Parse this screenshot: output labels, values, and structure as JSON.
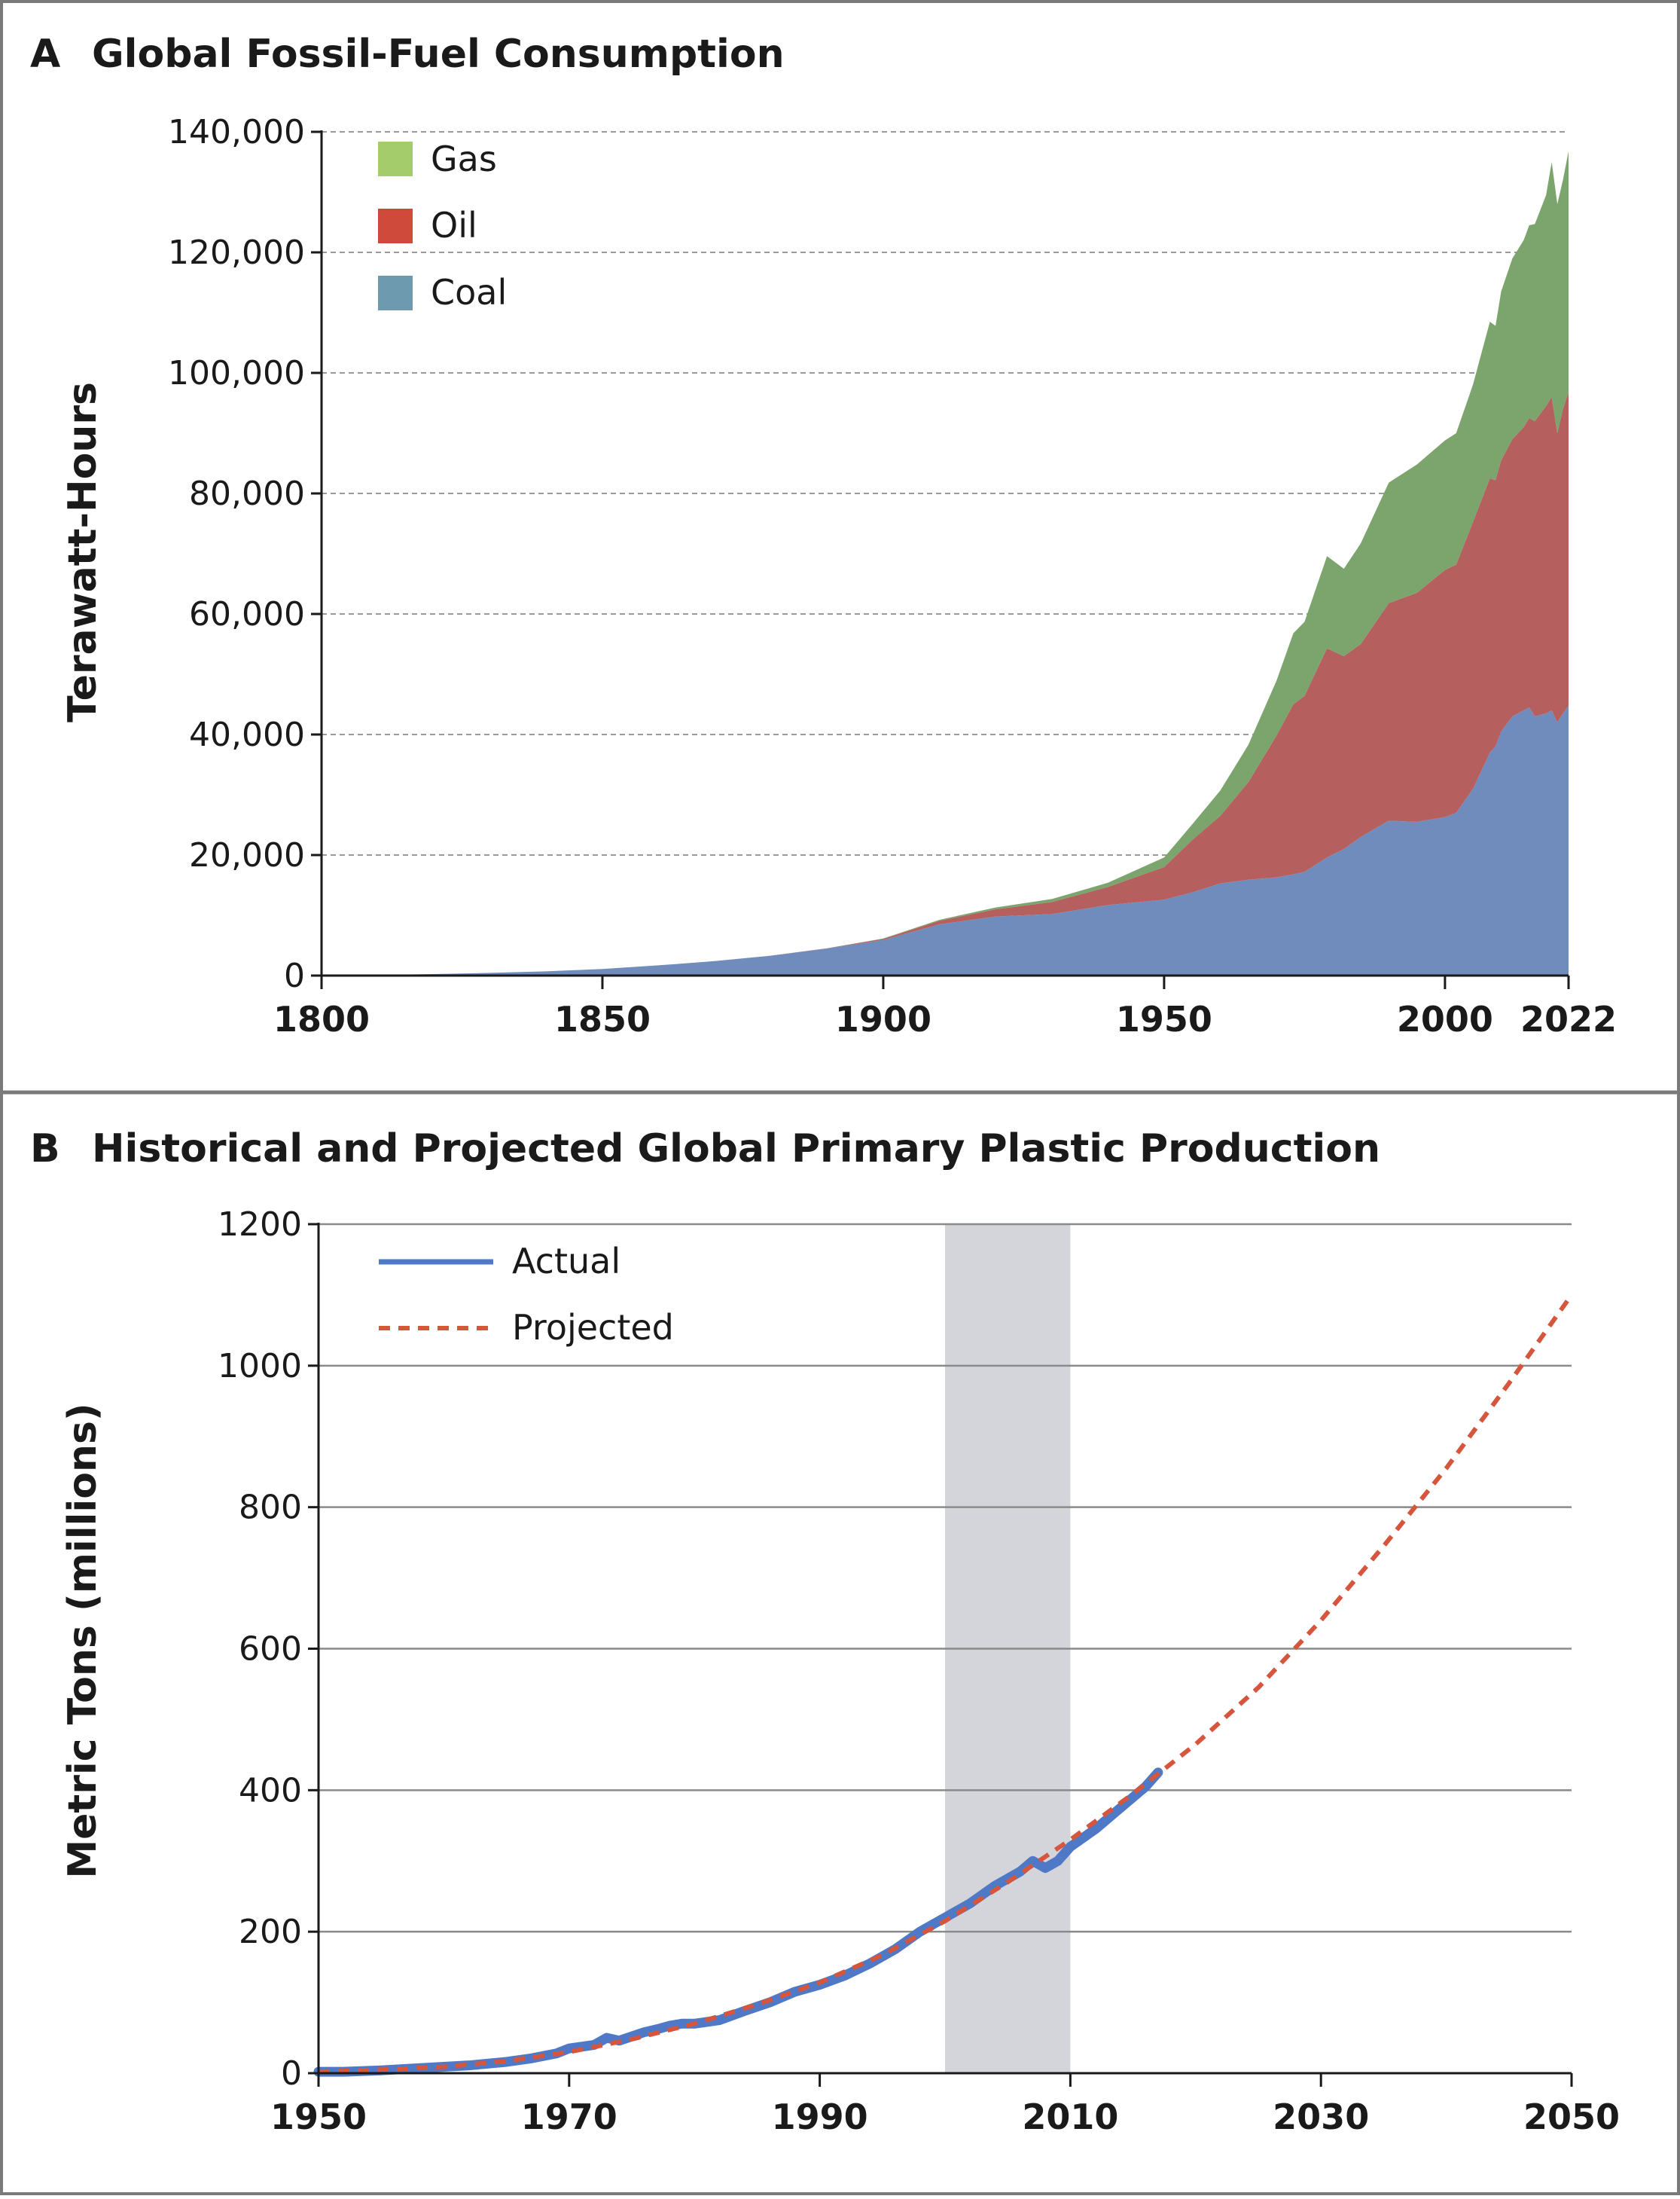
{
  "chart_data": [
    {
      "panel": "A",
      "type": "area",
      "stacked": true,
      "title": "Global Fossil-Fuel Consumption",
      "xlabel": "",
      "ylabel": "Terawatt-Hours",
      "xlim": [
        1800,
        2022
      ],
      "ylim": [
        0,
        140000
      ],
      "xticks": [
        1800,
        1850,
        1900,
        1950,
        2000,
        2022
      ],
      "yticks": [
        0,
        20000,
        40000,
        60000,
        80000,
        100000,
        120000,
        140000
      ],
      "ytick_labels": [
        "0",
        "20,000",
        "40,000",
        "60,000",
        "80,000",
        "100,000",
        "120,000",
        "140,000"
      ],
      "grid": "horizontal dashed",
      "legend_position": "top-left",
      "legend_order": [
        "Gas",
        "Oil",
        "Coal"
      ],
      "x": [
        1800,
        1810,
        1820,
        1830,
        1840,
        1850,
        1860,
        1870,
        1880,
        1890,
        1900,
        1910,
        1920,
        1930,
        1940,
        1950,
        1955,
        1960,
        1965,
        1970,
        1973,
        1975,
        1979,
        1982,
        1985,
        1990,
        1995,
        2000,
        2002,
        2005,
        2008,
        2009,
        2010,
        2012,
        2014,
        2015,
        2016,
        2018,
        2019,
        2020,
        2021,
        2022
      ],
      "series": [
        {
          "name": "Coal",
          "color": "#6f8cbc",
          "legend_color": "#6e9ab0",
          "values": [
            100,
            120,
            250,
            450,
            700,
            1100,
            1700,
            2400,
            3300,
            4500,
            5900,
            8500,
            9800,
            10200,
            11700,
            12600,
            13800,
            15300,
            15900,
            16300,
            16800,
            17200,
            19600,
            21000,
            23000,
            25700,
            25500,
            26300,
            27000,
            31000,
            37000,
            38000,
            40500,
            43000,
            44000,
            44500,
            43000,
            43500,
            44000,
            42000,
            43500,
            44800
          ]
        },
        {
          "name": "Oil",
          "color": "#b5605f",
          "legend_color": "#cf4a3a",
          "values": [
            0,
            0,
            0,
            0,
            0,
            0,
            0,
            0,
            5,
            30,
            200,
            600,
            1200,
            2000,
            3000,
            5400,
            8700,
            11200,
            16200,
            23500,
            28200,
            29200,
            34700,
            32000,
            32000,
            36100,
            38000,
            41000,
            41200,
            44300,
            45500,
            44200,
            45000,
            46000,
            47000,
            48000,
            49000,
            51000,
            52000,
            48000,
            50500,
            52000
          ]
        },
        {
          "name": "Gas",
          "color": "#7ca46d",
          "legend_color": "#a4cc6a",
          "values": [
            0,
            0,
            0,
            0,
            0,
            0,
            0,
            0,
            0,
            0,
            60,
            150,
            300,
            500,
            700,
            1600,
            2600,
            4200,
            6200,
            9100,
            11800,
            12300,
            15300,
            14500,
            16700,
            20000,
            21300,
            21500,
            21800,
            22800,
            26000,
            25600,
            28000,
            30000,
            31000,
            32000,
            32700,
            35000,
            39000,
            38000,
            38000,
            40000
          ]
        }
      ]
    },
    {
      "panel": "B",
      "type": "line",
      "title": "Historical and Projected Global Primary Plastic Production",
      "xlabel": "",
      "ylabel": "Metric Tons (millions)",
      "xlim": [
        1950,
        2050
      ],
      "ylim": [
        0,
        1200
      ],
      "xticks": [
        1950,
        1970,
        1990,
        2010,
        2030,
        2050
      ],
      "yticks": [
        0,
        200,
        400,
        600,
        800,
        1000,
        1200
      ],
      "grid": "horizontal solid",
      "legend_position": "top-left",
      "shaded_region": {
        "x_start": 2000,
        "x_end": 2010,
        "color": "#d3d5da"
      },
      "series": [
        {
          "name": "Actual",
          "color": "#4f79c6",
          "style": "solid",
          "x": [
            1950,
            1952,
            1955,
            1958,
            1960,
            1962,
            1965,
            1967,
            1969,
            1970,
            1972,
            1973,
            1974,
            1975,
            1976,
            1977,
            1978,
            1979,
            1980,
            1982,
            1984,
            1986,
            1988,
            1990,
            1992,
            1994,
            1996,
            1998,
            2000,
            2002,
            2004,
            2006,
            2007,
            2008,
            2009,
            2010,
            2012,
            2014,
            2016,
            2017
          ],
          "y": [
            2,
            2,
            4,
            7,
            9,
            11,
            16,
            21,
            28,
            35,
            40,
            50,
            46,
            52,
            58,
            62,
            67,
            70,
            70,
            75,
            88,
            100,
            115,
            125,
            138,
            155,
            175,
            200,
            220,
            240,
            265,
            285,
            300,
            290,
            300,
            320,
            345,
            375,
            405,
            425
          ]
        },
        {
          "name": "Projected",
          "color": "#d5553d",
          "style": "dashed",
          "x": [
            1950,
            1955,
            1960,
            1965,
            1970,
            1975,
            1980,
            1985,
            1990,
            1995,
            2000,
            2005,
            2010,
            2015,
            2020,
            2025,
            2030,
            2035,
            2040,
            2045,
            2050
          ],
          "y": [
            2,
            5,
            9,
            17,
            30,
            48,
            70,
            97,
            128,
            167,
            215,
            270,
            330,
            395,
            465,
            545,
            640,
            745,
            855,
            975,
            1100
          ]
        }
      ]
    }
  ]
}
